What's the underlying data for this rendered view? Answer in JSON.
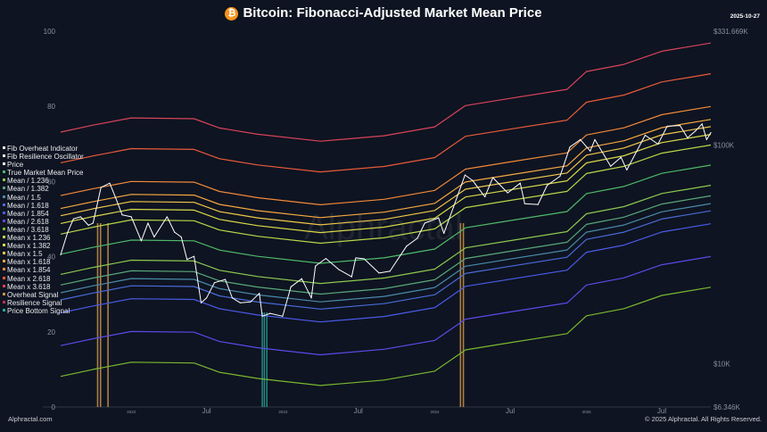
{
  "title": "Bitcoin: Fibonacci-Adjusted Market Mean Price",
  "date_label": "2025-10-27",
  "watermark": "Alphractal",
  "footer": {
    "left": "Alphractal.com",
    "right": "© 2025 Alphractal. All Rights Reserved."
  },
  "icons": {
    "title_icon": "bitcoin-icon"
  },
  "legend": [
    {
      "label": "Fib Overheat Indicator",
      "color": "#e8eaee"
    },
    {
      "label": "Fib Resilience Oscillator",
      "color": "#e8eaee"
    },
    {
      "label": "Price",
      "color": "#ffffff"
    },
    {
      "label": "True Market Mean Price",
      "color": "#4fb86a"
    },
    {
      "label": "Mean / 1.236",
      "color": "#8cc850"
    },
    {
      "label": "Mean / 1.382",
      "color": "#5aa87a"
    },
    {
      "label": "Mean / 1.5",
      "color": "#4a8aa8"
    },
    {
      "label": "Mean / 1.618",
      "color": "#4a6ad8"
    },
    {
      "label": "Mean / 1.854",
      "color": "#4a5ae8"
    },
    {
      "label": "Mean / 2.618",
      "color": "#5a4ae8"
    },
    {
      "label": "Mean / 3.618",
      "color": "#7ab830"
    },
    {
      "label": "Mean x 1.236",
      "color": "#b5d84a"
    },
    {
      "label": "Mean x 1.382",
      "color": "#d8d84a"
    },
    {
      "label": "Mean x 1.5",
      "color": "#f0c64a"
    },
    {
      "label": "Mean x 1.618",
      "color": "#f5a742"
    },
    {
      "label": "Mean x 1.854",
      "color": "#f0893a"
    },
    {
      "label": "Mean x 2.618",
      "color": "#e85a3a"
    },
    {
      "label": "Mean x 3.618",
      "color": "#d9435a"
    },
    {
      "label": "Overheat Signal",
      "color": "#c8924a"
    },
    {
      "label": "Resilience Signal",
      "color": "#c03050"
    },
    {
      "label": "Price Bottom Signal",
      "color": "#2aa59a"
    }
  ],
  "chart_data": {
    "type": "line",
    "title": "Bitcoin: Fibonacci-Adjusted Market Mean Price",
    "x_range": [
      "2021-07-15",
      "2025-10-27"
    ],
    "x_ticks": [
      {
        "date": "2022-01-01",
        "label": "2022"
      },
      {
        "date": "2022-07-01",
        "label": "Jul"
      },
      {
        "date": "2023-01-01",
        "label": "2023"
      },
      {
        "date": "2023-07-01",
        "label": "Jul"
      },
      {
        "date": "2024-01-01",
        "label": "2024"
      },
      {
        "date": "2024-07-01",
        "label": "Jul"
      },
      {
        "date": "2025-01-01",
        "label": "2025"
      },
      {
        "date": "2025-07-01",
        "label": "Jul"
      }
    ],
    "left_axis": {
      "range": [
        0,
        100
      ],
      "ticks": [
        "0",
        "20",
        "40",
        "60",
        "80",
        "100"
      ]
    },
    "right_axis": {
      "scale": "log",
      "range": [
        6346,
        331669
      ],
      "ticks": [
        {
          "value": 331669,
          "label": "$331.669K"
        },
        {
          "value": 100000,
          "label": "$100K"
        },
        {
          "value": 10000,
          "label": "$10K"
        },
        {
          "value": 6346,
          "label": "$6.346K"
        }
      ]
    },
    "grid": false,
    "legend_position": "left",
    "price": [
      [
        "2021-07-15",
        31500
      ],
      [
        "2021-08-01",
        40000
      ],
      [
        "2021-08-15",
        46000
      ],
      [
        "2021-09-01",
        47000
      ],
      [
        "2021-09-20",
        43000
      ],
      [
        "2021-10-01",
        44000
      ],
      [
        "2021-10-20",
        64000
      ],
      [
        "2021-11-10",
        67000
      ],
      [
        "2021-11-25",
        57000
      ],
      [
        "2021-12-10",
        48000
      ],
      [
        "2022-01-01",
        47000
      ],
      [
        "2022-01-25",
        36500
      ],
      [
        "2022-02-10",
        44000
      ],
      [
        "2022-02-25",
        38000
      ],
      [
        "2022-03-28",
        47000
      ],
      [
        "2022-04-15",
        40000
      ],
      [
        "2022-05-01",
        38000
      ],
      [
        "2022-05-15",
        30000
      ],
      [
        "2022-06-01",
        31000
      ],
      [
        "2022-06-18",
        19000
      ],
      [
        "2022-07-01",
        20000
      ],
      [
        "2022-07-20",
        23500
      ],
      [
        "2022-08-15",
        24300
      ],
      [
        "2022-09-01",
        20000
      ],
      [
        "2022-09-20",
        19000
      ],
      [
        "2022-10-15",
        19200
      ],
      [
        "2022-11-05",
        21000
      ],
      [
        "2022-11-12",
        16500
      ],
      [
        "2022-12-01",
        17000
      ],
      [
        "2022-12-31",
        16500
      ],
      [
        "2023-01-20",
        22500
      ],
      [
        "2023-02-15",
        24500
      ],
      [
        "2023-03-10",
        20000
      ],
      [
        "2023-03-20",
        28000
      ],
      [
        "2023-04-14",
        30300
      ],
      [
        "2023-05-15",
        27000
      ],
      [
        "2023-06-15",
        25000
      ],
      [
        "2023-06-25",
        30500
      ],
      [
        "2023-07-15",
        30200
      ],
      [
        "2023-08-20",
        26000
      ],
      [
        "2023-09-15",
        26500
      ],
      [
        "2023-10-25",
        34500
      ],
      [
        "2023-11-20",
        37500
      ],
      [
        "2023-12-08",
        44000
      ],
      [
        "2024-01-10",
        46500
      ],
      [
        "2024-01-23",
        39500
      ],
      [
        "2024-02-15",
        52000
      ],
      [
        "2024-03-14",
        73000
      ],
      [
        "2024-04-01",
        69000
      ],
      [
        "2024-05-01",
        58000
      ],
      [
        "2024-05-20",
        71000
      ],
      [
        "2024-06-25",
        60500
      ],
      [
        "2024-07-25",
        67000
      ],
      [
        "2024-08-05",
        54000
      ],
      [
        "2024-09-06",
        53500
      ],
      [
        "2024-09-28",
        65500
      ],
      [
        "2024-10-29",
        72000
      ],
      [
        "2024-11-22",
        98000
      ],
      [
        "2024-12-17",
        106000
      ],
      [
        "2025-01-10",
        94000
      ],
      [
        "2025-01-21",
        106000
      ],
      [
        "2025-02-28",
        80000
      ],
      [
        "2025-03-25",
        88000
      ],
      [
        "2025-04-08",
        77000
      ],
      [
        "2025-05-22",
        111000
      ],
      [
        "2025-06-22",
        101000
      ],
      [
        "2025-07-14",
        122000
      ],
      [
        "2025-08-14",
        123000
      ],
      [
        "2025-09-01",
        108000
      ],
      [
        "2025-09-20",
        116000
      ],
      [
        "2025-10-06",
        125000
      ],
      [
        "2025-10-17",
        106000
      ],
      [
        "2025-10-27",
        114000
      ]
    ],
    "true_market_mean": [
      [
        "2021-07-15",
        31700
      ],
      [
        "2021-10-01",
        34100
      ],
      [
        "2022-01-01",
        36800
      ],
      [
        "2022-06-01",
        36500
      ],
      [
        "2022-08-01",
        33100
      ],
      [
        "2022-11-01",
        31000
      ],
      [
        "2023-04-01",
        28800
      ],
      [
        "2023-09-01",
        30500
      ],
      [
        "2024-01-01",
        33500
      ],
      [
        "2024-03-15",
        41900
      ],
      [
        "2024-07-01",
        45200
      ],
      [
        "2024-11-15",
        49700
      ],
      [
        "2025-01-01",
        60000
      ],
      [
        "2025-04-01",
        64700
      ],
      [
        "2025-07-01",
        74300
      ],
      [
        "2025-10-27",
        81000
      ]
    ],
    "band_multipliers": {
      "Mean x 3.618": 3.618,
      "Mean x 2.618": 2.618,
      "Mean x 1.854": 1.854,
      "Mean x 1.618": 1.618,
      "Mean x 1.5": 1.5,
      "Mean x 1.382": 1.382,
      "Mean x 1.236": 1.236,
      "Mean / 1.236": 0.809,
      "Mean / 1.382": 0.7236,
      "Mean / 1.5": 0.6667,
      "Mean / 1.618": 0.618,
      "Mean / 1.854": 0.5394,
      "Mean / 2.618": 0.382,
      "Mean / 3.618": 0.2764
    },
    "overheat_signals": [
      "2021-10-12",
      "2021-10-19",
      "2021-11-06",
      "2024-03-03",
      "2024-03-10"
    ],
    "price_bottom_signals": [
      "2022-11-12",
      "2022-11-17",
      "2022-11-23"
    ]
  }
}
